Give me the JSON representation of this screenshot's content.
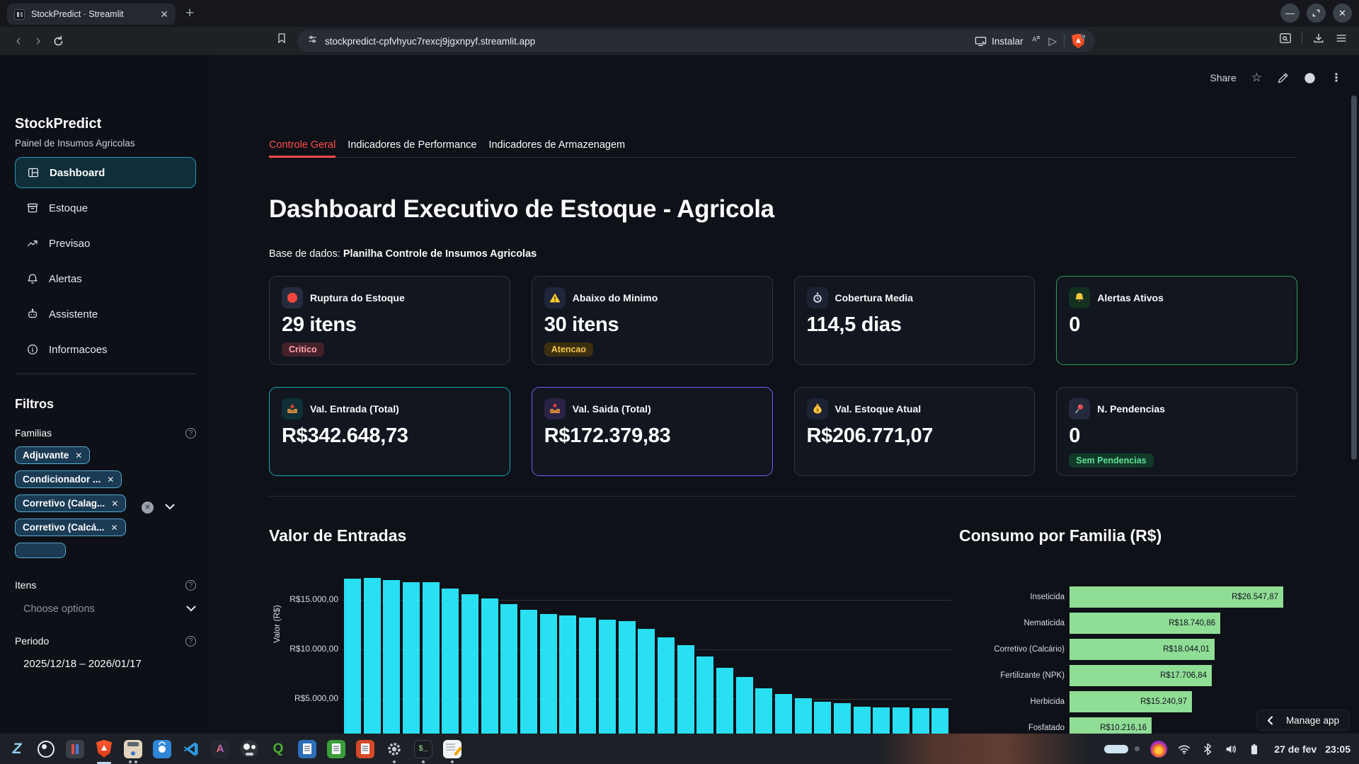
{
  "browser": {
    "tab_title": "StockPredict · Streamlit",
    "url": "stockpredict-cpfvhyuc7rexcj9jgxnpyf.streamlit.app",
    "install_label": "Instalar",
    "shield_badge": "2"
  },
  "app_header": {
    "share_label": "Share"
  },
  "sidebar": {
    "title": "StockPredict",
    "subtitle": "Painel de Insumos Agricolas",
    "nav": [
      {
        "label": "Dashboard",
        "icon": "dashboard",
        "active": true
      },
      {
        "label": "Estoque",
        "icon": "estoque",
        "active": false
      },
      {
        "label": "Previsao",
        "icon": "previsao",
        "active": false
      },
      {
        "label": "Alertas",
        "icon": "alertas",
        "active": false
      },
      {
        "label": "Assistente",
        "icon": "assistente",
        "active": false
      },
      {
        "label": "Informacoes",
        "icon": "informacoes",
        "active": false
      }
    ],
    "filters": {
      "heading": "Filtros",
      "familias_label": "Familias",
      "familias_chips": [
        "Adjuvante",
        "Condicionador ...",
        "Corretivo (Calag...",
        "Corretivo (Calcá..."
      ],
      "has_clipped_fifth_chip": true,
      "itens_label": "Itens",
      "itens_placeholder": "Choose options",
      "periodo_label": "Periodo",
      "periodo_value": "2025/12/18 – 2026/01/17"
    }
  },
  "main": {
    "tabs": [
      {
        "label": "Controle Geral",
        "active": true
      },
      {
        "label": "Indicadores de Performance",
        "active": false
      },
      {
        "label": "Indicadores de Armazenagem",
        "active": false
      }
    ],
    "title": "Dashboard Executivo de Estoque - Agricola",
    "datasource_prefix": "Base de dados:",
    "datasource_name": "Planilha Controle de Insumos Agricolas",
    "metrics": [
      {
        "icon": "stop-sign",
        "label": "Ruptura do Estoque",
        "value": "29 itens",
        "badge": "Critico",
        "badge_type": "critical",
        "border": "default"
      },
      {
        "icon": "warning",
        "label": "Abaixo do Minimo",
        "value": "30 itens",
        "badge": "Atencao",
        "badge_type": "warning",
        "border": "default"
      },
      {
        "icon": "stopwatch",
        "label": "Cobertura Media",
        "value": "114,5 dias",
        "badge": null,
        "badge_type": null,
        "border": "default"
      },
      {
        "icon": "bell",
        "label": "Alertas Ativos",
        "value": "0",
        "badge": null,
        "badge_type": null,
        "border": "green"
      },
      {
        "icon": "inbox-tray",
        "label": "Val. Entrada (Total)",
        "value": "R$342.648,73",
        "badge": null,
        "badge_type": null,
        "border": "teal"
      },
      {
        "icon": "outbox-tray",
        "label": "Val. Saida (Total)",
        "value": "R$172.379,83",
        "badge": null,
        "badge_type": null,
        "border": "purple"
      },
      {
        "icon": "money-bag",
        "label": "Val. Estoque Atual",
        "value": "R$206.771,07",
        "badge": null,
        "badge_type": null,
        "border": "default"
      },
      {
        "icon": "pushpin",
        "label": "N. Pendencias",
        "value": "0",
        "badge": "Sem Pendencias",
        "badge_type": "success",
        "border": "default"
      }
    ],
    "manage_app_label": "Manage app"
  },
  "chart_data": [
    {
      "type": "bar",
      "title": "Valor de Entradas",
      "ylabel": "Valor (R$)",
      "yticks": [
        {
          "value": 5000,
          "label": "R$5.000,00"
        },
        {
          "value": 10000,
          "label": "R$10.000,00"
        },
        {
          "value": 15000,
          "label": "R$15.000,00"
        }
      ],
      "values": [
        17150,
        17200,
        17000,
        16800,
        16800,
        16150,
        15550,
        15150,
        14550,
        14000,
        13600,
        13400,
        13250,
        13000,
        12850,
        12100,
        11200,
        10400,
        9300,
        8150,
        7250,
        6100,
        5500,
        5100,
        4750,
        4600,
        4250,
        4150,
        4150,
        4050,
        4050
      ],
      "bar_color": "#29dff2",
      "x_axis_labels_visible": false,
      "grid": true
    },
    {
      "type": "bar",
      "orientation": "horizontal",
      "title": "Consumo por Familia (R$)",
      "categories": [
        "Inseticida",
        "Nematicida",
        "Corretivo (Calcário)",
        "Fertilizante (NPK)",
        "Herbicida",
        "Fosfatado"
      ],
      "values": [
        26547.87,
        18740.86,
        18044.01,
        17706.84,
        15240.97,
        10216.16
      ],
      "value_labels": [
        "R$26.547,87",
        "R$18.740,86",
        "R$18.044,01",
        "R$17.706,84",
        "R$15.240,97",
        "R$10.216,16"
      ],
      "bar_color": "#90dd96",
      "xmax": 26547.87,
      "legend": false
    }
  ],
  "taskbar": {
    "apps": [
      {
        "name": "zorin-menu",
        "indicator": null
      },
      {
        "name": "obs-studio",
        "indicator": null
      },
      {
        "name": "media-app",
        "indicator": null
      },
      {
        "name": "brave-browser",
        "indicator": "bar"
      },
      {
        "name": "software-store",
        "indicator": "dots"
      },
      {
        "name": "app-center",
        "indicator": null
      },
      {
        "name": "vscode",
        "indicator": null
      },
      {
        "name": "analytics-app",
        "indicator": null
      },
      {
        "name": "gimp",
        "indicator": null
      },
      {
        "name": "qgis",
        "indicator": null
      },
      {
        "name": "libreoffice-writer",
        "indicator": null
      },
      {
        "name": "libreoffice-calc",
        "indicator": null
      },
      {
        "name": "libreoffice-impress",
        "indicator": null
      },
      {
        "name": "settings",
        "indicator": "dot"
      },
      {
        "name": "terminal",
        "indicator": "dot"
      },
      {
        "name": "text-editor",
        "indicator": "dot"
      }
    ],
    "date": "27 de fev",
    "time": "23:05"
  },
  "colors": {
    "background": "#0e1117",
    "card_background": "#11161f",
    "accent_red": "#ff4b4b",
    "bar_cyan": "#29dff2",
    "bar_green": "#90dd96",
    "chip_border": "#57a8cc",
    "active_nav_border": "#2795b3"
  }
}
